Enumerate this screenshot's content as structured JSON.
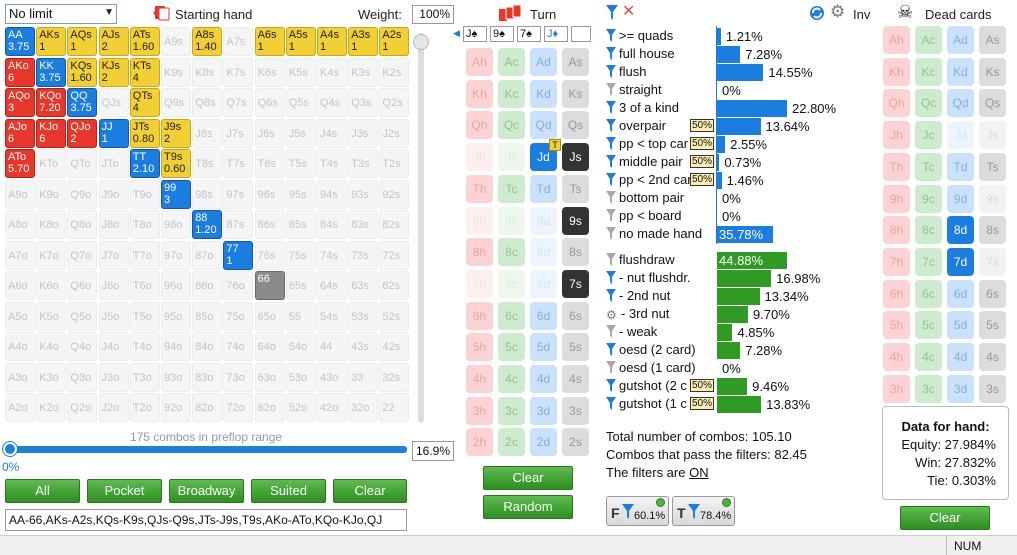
{
  "toolbar": {
    "limit_select": "No limit",
    "starting_hand_label": "Starting hand",
    "weight_label": "Weight:",
    "weight_value": "100%",
    "turn_label": "Turn",
    "inv_label": "Inv",
    "dead_cards_label": "Dead cards"
  },
  "range_grid": {
    "rows": [
      [
        [
          "AA",
          "3.75",
          "blue"
        ],
        [
          "AKs",
          "1",
          "yellow"
        ],
        [
          "AQs",
          "1",
          "yellow"
        ],
        [
          "AJs",
          "2",
          "yellow"
        ],
        [
          "ATs",
          "1.60",
          "yellow"
        ],
        [
          "A9s",
          "",
          "empty"
        ],
        [
          "A8s",
          "1.40",
          "yellow"
        ],
        [
          "A7s",
          "",
          "empty"
        ],
        [
          "A6s",
          "1",
          "yellow"
        ],
        [
          "A5s",
          "1",
          "yellow"
        ],
        [
          "A4s",
          "1",
          "yellow"
        ],
        [
          "A3s",
          "1",
          "yellow"
        ],
        [
          "A2s",
          "1",
          "yellow"
        ]
      ],
      [
        [
          "AKo",
          "6",
          "red"
        ],
        [
          "KK",
          "3.75",
          "blue"
        ],
        [
          "KQs",
          "1.60",
          "yellow"
        ],
        [
          "KJs",
          "2",
          "yellow"
        ],
        [
          "KTs",
          "4",
          "yellow"
        ],
        [
          "K9s",
          "",
          "empty"
        ],
        [
          "K8s",
          "",
          "empty"
        ],
        [
          "K7s",
          "",
          "empty"
        ],
        [
          "K6s",
          "",
          "empty"
        ],
        [
          "K5s",
          "",
          "empty"
        ],
        [
          "K4s",
          "",
          "empty"
        ],
        [
          "K3s",
          "",
          "empty"
        ],
        [
          "K2s",
          "",
          "empty"
        ]
      ],
      [
        [
          "AQo",
          "3",
          "red"
        ],
        [
          "KQo",
          "7.20",
          "red"
        ],
        [
          "QQ",
          "3.75",
          "blue"
        ],
        [
          "QJs",
          "",
          "empty"
        ],
        [
          "QTs",
          "4",
          "yellow"
        ],
        [
          "Q9s",
          "",
          "empty"
        ],
        [
          "Q8s",
          "",
          "empty"
        ],
        [
          "Q7s",
          "",
          "empty"
        ],
        [
          "Q6s",
          "",
          "empty"
        ],
        [
          "Q5s",
          "",
          "empty"
        ],
        [
          "Q4s",
          "",
          "empty"
        ],
        [
          "Q3s",
          "",
          "empty"
        ],
        [
          "Q2s",
          "",
          "empty"
        ]
      ],
      [
        [
          "AJo",
          "6",
          "red"
        ],
        [
          "KJo",
          "6",
          "red"
        ],
        [
          "QJo",
          "2",
          "red"
        ],
        [
          "JJ",
          "1",
          "blue"
        ],
        [
          "JTs",
          "0.80",
          "yellow"
        ],
        [
          "J9s",
          "2",
          "yellow"
        ],
        [
          "J8s",
          "",
          "empty"
        ],
        [
          "J7s",
          "",
          "empty"
        ],
        [
          "J6s",
          "",
          "empty"
        ],
        [
          "J5s",
          "",
          "empty"
        ],
        [
          "J4s",
          "",
          "empty"
        ],
        [
          "J3s",
          "",
          "empty"
        ],
        [
          "J2s",
          "",
          "empty"
        ]
      ],
      [
        [
          "ATo",
          "5.70",
          "red"
        ],
        [
          "KTo",
          "",
          "empty"
        ],
        [
          "QTo",
          "",
          "empty"
        ],
        [
          "JTo",
          "",
          "empty"
        ],
        [
          "TT",
          "2.10",
          "blue"
        ],
        [
          "T9s",
          "0.60",
          "yellow"
        ],
        [
          "T8s",
          "",
          "empty"
        ],
        [
          "T7s",
          "",
          "empty"
        ],
        [
          "T6s",
          "",
          "empty"
        ],
        [
          "T5s",
          "",
          "empty"
        ],
        [
          "T4s",
          "",
          "empty"
        ],
        [
          "T3s",
          "",
          "empty"
        ],
        [
          "T2s",
          "",
          "empty"
        ]
      ],
      [
        [
          "A9o",
          "",
          "empty"
        ],
        [
          "K9o",
          "",
          "empty"
        ],
        [
          "Q9o",
          "",
          "empty"
        ],
        [
          "J9o",
          "",
          "empty"
        ],
        [
          "T9o",
          "",
          "empty"
        ],
        [
          "99",
          "3",
          "blue"
        ],
        [
          "98s",
          "",
          "empty"
        ],
        [
          "97s",
          "",
          "empty"
        ],
        [
          "96s",
          "",
          "empty"
        ],
        [
          "95s",
          "",
          "empty"
        ],
        [
          "94s",
          "",
          "empty"
        ],
        [
          "93s",
          "",
          "empty"
        ],
        [
          "92s",
          "",
          "empty"
        ]
      ],
      [
        [
          "A8o",
          "",
          "empty"
        ],
        [
          "K8o",
          "",
          "empty"
        ],
        [
          "Q8o",
          "",
          "empty"
        ],
        [
          "J8o",
          "",
          "empty"
        ],
        [
          "T8o",
          "",
          "empty"
        ],
        [
          "98o",
          "",
          "empty"
        ],
        [
          "88",
          "1.20",
          "blue"
        ],
        [
          "87s",
          "",
          "empty"
        ],
        [
          "86s",
          "",
          "empty"
        ],
        [
          "85s",
          "",
          "empty"
        ],
        [
          "84s",
          "",
          "empty"
        ],
        [
          "83s",
          "",
          "empty"
        ],
        [
          "82s",
          "",
          "empty"
        ]
      ],
      [
        [
          "A7o",
          "",
          "empty"
        ],
        [
          "K7o",
          "",
          "empty"
        ],
        [
          "Q7o",
          "",
          "empty"
        ],
        [
          "J7o",
          "",
          "empty"
        ],
        [
          "T7o",
          "",
          "empty"
        ],
        [
          "97o",
          "",
          "empty"
        ],
        [
          "87o",
          "",
          "empty"
        ],
        [
          "77",
          "1",
          "blue"
        ],
        [
          "76s",
          "",
          "empty"
        ],
        [
          "75s",
          "",
          "empty"
        ],
        [
          "74s",
          "",
          "empty"
        ],
        [
          "73s",
          "",
          "empty"
        ],
        [
          "72s",
          "",
          "empty"
        ]
      ],
      [
        [
          "A6o",
          "",
          "empty"
        ],
        [
          "K6o",
          "",
          "empty"
        ],
        [
          "Q6o",
          "",
          "empty"
        ],
        [
          "J6o",
          "",
          "empty"
        ],
        [
          "T6o",
          "",
          "empty"
        ],
        [
          "96o",
          "",
          "empty"
        ],
        [
          "86o",
          "",
          "empty"
        ],
        [
          "76o",
          "",
          "empty"
        ],
        [
          "66",
          "",
          "gray"
        ],
        [
          "65s",
          "",
          "empty"
        ],
        [
          "64s",
          "",
          "empty"
        ],
        [
          "63s",
          "",
          "empty"
        ],
        [
          "62s",
          "",
          "empty"
        ]
      ],
      [
        [
          "A5o",
          "",
          "empty"
        ],
        [
          "K5o",
          "",
          "empty"
        ],
        [
          "Q5o",
          "",
          "empty"
        ],
        [
          "J5o",
          "",
          "empty"
        ],
        [
          "T5o",
          "",
          "empty"
        ],
        [
          "95o",
          "",
          "empty"
        ],
        [
          "85o",
          "",
          "empty"
        ],
        [
          "75o",
          "",
          "empty"
        ],
        [
          "65o",
          "",
          "empty"
        ],
        [
          "55",
          "",
          "empty"
        ],
        [
          "54s",
          "",
          "empty"
        ],
        [
          "53s",
          "",
          "empty"
        ],
        [
          "52s",
          "",
          "empty"
        ]
      ],
      [
        [
          "A4o",
          "",
          "empty"
        ],
        [
          "K4o",
          "",
          "empty"
        ],
        [
          "Q4o",
          "",
          "empty"
        ],
        [
          "J4o",
          "",
          "empty"
        ],
        [
          "T4o",
          "",
          "empty"
        ],
        [
          "94o",
          "",
          "empty"
        ],
        [
          "84o",
          "",
          "empty"
        ],
        [
          "74o",
          "",
          "empty"
        ],
        [
          "64o",
          "",
          "empty"
        ],
        [
          "54o",
          "",
          "empty"
        ],
        [
          "44",
          "",
          "empty"
        ],
        [
          "43s",
          "",
          "empty"
        ],
        [
          "42s",
          "",
          "empty"
        ]
      ],
      [
        [
          "A3o",
          "",
          "empty"
        ],
        [
          "K3o",
          "",
          "empty"
        ],
        [
          "Q3o",
          "",
          "empty"
        ],
        [
          "J3o",
          "",
          "empty"
        ],
        [
          "T3o",
          "",
          "empty"
        ],
        [
          "93o",
          "",
          "empty"
        ],
        [
          "83o",
          "",
          "empty"
        ],
        [
          "73o",
          "",
          "empty"
        ],
        [
          "63o",
          "",
          "empty"
        ],
        [
          "53o",
          "",
          "empty"
        ],
        [
          "43o",
          "",
          "empty"
        ],
        [
          "33",
          "",
          "empty"
        ],
        [
          "32s",
          "",
          "empty"
        ]
      ],
      [
        [
          "A2o",
          "",
          "empty"
        ],
        [
          "K2o",
          "",
          "empty"
        ],
        [
          "Q2o",
          "",
          "empty"
        ],
        [
          "J2o",
          "",
          "empty"
        ],
        [
          "T2o",
          "",
          "empty"
        ],
        [
          "92o",
          "",
          "empty"
        ],
        [
          "82o",
          "",
          "empty"
        ],
        [
          "72o",
          "",
          "empty"
        ],
        [
          "62o",
          "",
          "empty"
        ],
        [
          "52o",
          "",
          "empty"
        ],
        [
          "42o",
          "",
          "empty"
        ],
        [
          "32o",
          "",
          "empty"
        ],
        [
          "22",
          "",
          "empty"
        ]
      ]
    ],
    "combos_text": "175 combos in preflop range",
    "percent_value": "16.9%",
    "slider_min": "0%",
    "slider_fraction": 0.0,
    "buttons": [
      "All",
      "Pocket",
      "Broadway",
      "Suited",
      "Clear"
    ],
    "range_text": "AA-66,AKs-A2s,KQs-K9s,QJs-Q9s,JTs-J9s,T9s,AKo-ATo,KQo-KJo,QJ"
  },
  "board": {
    "cards": [
      "J♠",
      "9♠",
      "7♠",
      "J♦"
    ],
    "ranks": [
      "A",
      "K",
      "Q",
      "J",
      "T",
      "9",
      "8",
      "7",
      "6",
      "5",
      "4",
      "3",
      "2"
    ],
    "suits": [
      "h",
      "c",
      "d",
      "s"
    ],
    "states": {
      "Jd": "blue",
      "Js": "black",
      "9s": "black",
      "7s": "black",
      "Jh": "dim",
      "Jc": "dim",
      "9h": "dim",
      "9c": "dim",
      "9d": "dim",
      "8d": "dim",
      "7h": "dim",
      "7c": "dim",
      "7d": "dim"
    },
    "turn_badge": "T",
    "clear_label": "Clear",
    "random_label": "Random"
  },
  "filters": {
    "items": [
      {
        "label": ">= quads",
        "value": "1.21%",
        "pct": 1.21,
        "color": "blue",
        "icon": "filter-blue-icon",
        "tag": ""
      },
      {
        "label": "full house",
        "value": "7.28%",
        "pct": 7.28,
        "color": "blue",
        "icon": "filter-blue-icon",
        "tag": ""
      },
      {
        "label": "flush",
        "value": "14.55%",
        "pct": 14.55,
        "color": "blue",
        "icon": "filter-blue-icon",
        "tag": ""
      },
      {
        "label": "straight",
        "value": "0%",
        "pct": 0,
        "color": "blue",
        "icon": "filter-gray-icon",
        "tag": ""
      },
      {
        "label": "3 of a kind",
        "value": "22.80%",
        "pct": 22.8,
        "color": "blue",
        "icon": "filter-blue-icon",
        "tag": ""
      },
      {
        "label": "overpair",
        "value": "13.64%",
        "pct": 13.64,
        "color": "blue",
        "icon": "filter-blue-icon",
        "tag": "50%"
      },
      {
        "label": "pp < top car",
        "value": "2.55%",
        "pct": 2.55,
        "color": "blue",
        "icon": "filter-blue-icon",
        "tag": "50%"
      },
      {
        "label": "middle pair",
        "value": "0.73%",
        "pct": 0.73,
        "color": "blue",
        "icon": "filter-blue-icon",
        "tag": "50%"
      },
      {
        "label": "pp < 2nd car",
        "value": "1.46%",
        "pct": 1.46,
        "color": "blue",
        "icon": "filter-blue-icon",
        "tag": "50%"
      },
      {
        "label": "bottom pair",
        "value": "0%",
        "pct": 0,
        "color": "blue",
        "icon": "filter-gray-icon",
        "tag": ""
      },
      {
        "label": "pp < board",
        "value": "0%",
        "pct": 0,
        "color": "blue",
        "icon": "filter-gray-icon",
        "tag": ""
      },
      {
        "label": "no made hand",
        "value": "35.78%",
        "pct": 35.78,
        "color": "blue",
        "icon": "filter-gray-icon",
        "tag": ""
      },
      {
        "label": "flushdraw",
        "value": "44.88%",
        "pct": 44.88,
        "color": "green",
        "icon": "filter-gray-icon",
        "tag": ""
      },
      {
        "label": "- nut flushdr.",
        "value": "16.98%",
        "pct": 16.98,
        "color": "green",
        "icon": "filter-blue-icon",
        "tag": ""
      },
      {
        "label": "- 2nd nut",
        "value": "13.34%",
        "pct": 13.34,
        "color": "green",
        "icon": "filter-blue-icon",
        "tag": ""
      },
      {
        "label": "- 3rd nut",
        "value": "9.70%",
        "pct": 9.7,
        "color": "green",
        "icon": "gear-icon",
        "tag": ""
      },
      {
        "label": "- weak",
        "value": "4.85%",
        "pct": 4.85,
        "color": "green",
        "icon": "filter-gray-icon",
        "tag": ""
      },
      {
        "label": "oesd (2 card)",
        "value": "7.28%",
        "pct": 7.28,
        "color": "green",
        "icon": "filter-blue-icon",
        "tag": ""
      },
      {
        "label": "oesd (1 card)",
        "value": "0%",
        "pct": 0,
        "color": "green",
        "icon": "filter-gray-icon",
        "tag": ""
      },
      {
        "label": "gutshot (2 c",
        "value": "9.46%",
        "pct": 9.46,
        "color": "green",
        "icon": "filter-blue-icon",
        "tag": "50%"
      },
      {
        "label": "gutshot (1 c",
        "value": "13.83%",
        "pct": 13.83,
        "color": "green",
        "icon": "filter-blue-icon",
        "tag": "50%"
      }
    ],
    "total_combos": "Total number of combos: 105.10",
    "pass_combos": "Combos that pass the filters: 82.45",
    "filters_state_prefix": "The filters are ",
    "filters_state": "ON",
    "f_button_letter": "F",
    "f_button_value": "60.1%",
    "t_button_letter": "T",
    "t_button_value": "78.4%"
  },
  "dead_cards": {
    "states": {
      "Ad": "blue-light",
      "Qd": "blue-light",
      "Jd": "dim",
      "Js": "dim",
      "9s": "dim",
      "7s": "dim",
      "8d": "blue",
      "7d": "blue"
    }
  },
  "data_for_hand": {
    "title": "Data for hand:",
    "equity": "Equity: 27.984%",
    "win": "Win: 27.832%",
    "tie": "Tie: 0.303%",
    "clear_label": "Clear"
  },
  "status_bar": {
    "num": "NUM"
  },
  "colors": {
    "red": "#e8362a",
    "blue": "#1c7de0",
    "yellow": "#f2cf33",
    "green": "#2f9b22",
    "button_green": "#3fa232"
  }
}
